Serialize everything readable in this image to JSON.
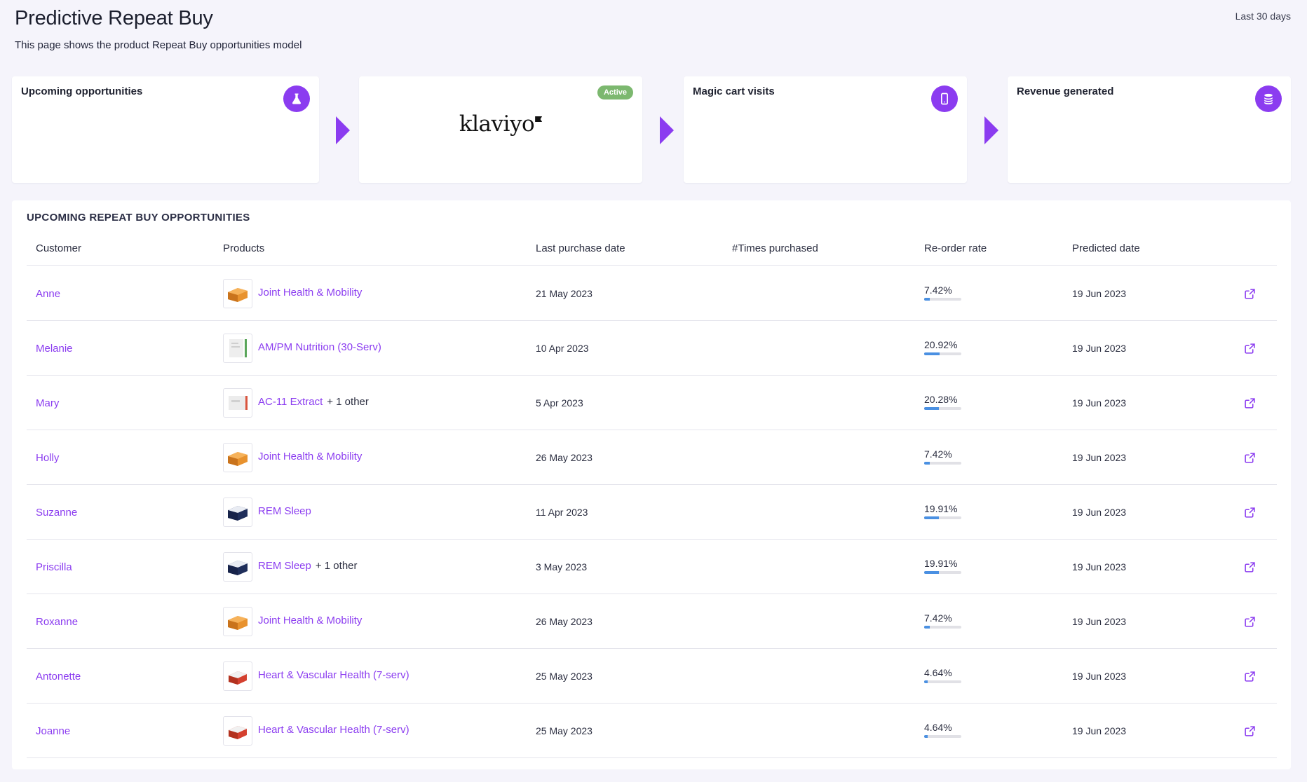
{
  "header": {
    "title": "Predictive Repeat Buy",
    "subtitle": "This page shows the product Repeat Buy opportunities model",
    "date_range": "Last 30 days"
  },
  "funnel": {
    "upcoming": {
      "title": "Upcoming opportunities",
      "icon": "flask-icon"
    },
    "klaviyo": {
      "logo_text": "klaviyo",
      "badge": "Active"
    },
    "magic_cart": {
      "title": "Magic cart visits",
      "icon": "phone-icon"
    },
    "revenue": {
      "title": "Revenue generated",
      "icon": "coins-icon"
    }
  },
  "table": {
    "title": "UPCOMING REPEAT BUY OPPORTUNITIES",
    "columns": {
      "customer": "Customer",
      "products": "Products",
      "last_purchase": "Last purchase date",
      "times_purchased": "#Times purchased",
      "reorder_rate": "Re-order rate",
      "predicted_date": "Predicted date"
    },
    "rows": [
      {
        "customer": "Anne",
        "product": "Joint Health & Mobility",
        "extra": "",
        "thumb": "orange",
        "last_purchase": "21 May 2023",
        "times_purchased": "",
        "rate": "7.42%",
        "rate_value": 7.42,
        "predicted": "19 Jun 2023"
      },
      {
        "customer": "Melanie",
        "product": "AM/PM Nutrition (30-Serv)",
        "extra": "",
        "thumb": "white-green",
        "last_purchase": "10 Apr 2023",
        "times_purchased": "",
        "rate": "20.92%",
        "rate_value": 20.92,
        "predicted": "19 Jun 2023"
      },
      {
        "customer": "Mary",
        "product": "AC-11 Extract",
        "extra": "+ 1 other",
        "thumb": "white-red",
        "last_purchase": "5 Apr 2023",
        "times_purchased": "",
        "rate": "20.28%",
        "rate_value": 20.28,
        "predicted": "19 Jun 2023"
      },
      {
        "customer": "Holly",
        "product": "Joint Health & Mobility",
        "extra": "",
        "thumb": "orange",
        "last_purchase": "26 May 2023",
        "times_purchased": "",
        "rate": "7.42%",
        "rate_value": 7.42,
        "predicted": "19 Jun 2023"
      },
      {
        "customer": "Suzanne",
        "product": "REM Sleep",
        "extra": "",
        "thumb": "navy",
        "last_purchase": "11 Apr 2023",
        "times_purchased": "",
        "rate": "19.91%",
        "rate_value": 19.91,
        "predicted": "19 Jun 2023"
      },
      {
        "customer": "Priscilla",
        "product": "REM Sleep",
        "extra": "+ 1 other",
        "thumb": "navy",
        "last_purchase": "3 May 2023",
        "times_purchased": "",
        "rate": "19.91%",
        "rate_value": 19.91,
        "predicted": "19 Jun 2023"
      },
      {
        "customer": "Roxanne",
        "product": "Joint Health & Mobility",
        "extra": "",
        "thumb": "orange",
        "last_purchase": "26 May 2023",
        "times_purchased": "",
        "rate": "7.42%",
        "rate_value": 7.42,
        "predicted": "19 Jun 2023"
      },
      {
        "customer": "Antonette",
        "product": "Heart & Vascular Health (7-serv)",
        "extra": "",
        "thumb": "red",
        "last_purchase": "25 May 2023",
        "times_purchased": "",
        "rate": "4.64%",
        "rate_value": 4.64,
        "predicted": "19 Jun 2023"
      },
      {
        "customer": "Joanne",
        "product": "Heart & Vascular Health (7-serv)",
        "extra": "",
        "thumb": "red",
        "last_purchase": "25 May 2023",
        "times_purchased": "",
        "rate": "4.64%",
        "rate_value": 4.64,
        "predicted": "19 Jun 2023"
      }
    ]
  },
  "colors": {
    "accent": "#8b3cf0",
    "active_badge": "#7cb86f",
    "rate_fill": "#4a90e2"
  }
}
